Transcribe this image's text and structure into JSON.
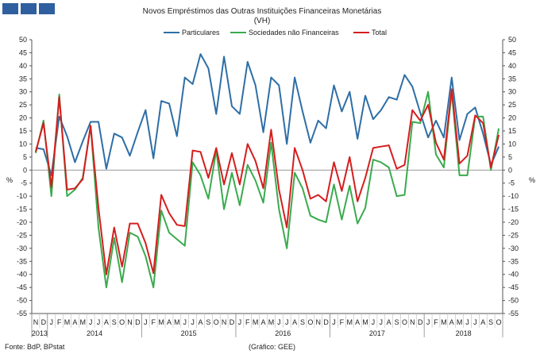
{
  "chart_data": {
    "type": "line",
    "title": "Novos Empréstimos das Outras Instituições Financeiras Monetárias",
    "subtitle": "(VH)",
    "ylabel_left": "%",
    "ylabel_right": "%",
    "ylim": [
      -55,
      50
    ],
    "ytick_step": 5,
    "source_note": "Fonte: BdP, BPstat",
    "graph_note": "(Gráfico: GEE)",
    "month_labels": [
      "N",
      "D",
      "J",
      "F",
      "M",
      "A",
      "M",
      "J",
      "J",
      "A",
      "S",
      "O",
      "N",
      "D",
      "J",
      "F",
      "M",
      "A",
      "M",
      "J",
      "J",
      "A",
      "S",
      "O",
      "N",
      "D",
      "J",
      "F",
      "M",
      "A",
      "M",
      "J",
      "J",
      "A",
      "S",
      "O",
      "N",
      "D",
      "J",
      "F",
      "M",
      "A",
      "M",
      "J",
      "J",
      "A",
      "S",
      "O",
      "N",
      "D",
      "J",
      "F",
      "M",
      "A",
      "M",
      "J",
      "J",
      "A",
      "S",
      "O"
    ],
    "year_groups": [
      {
        "label": "2013",
        "start": 0,
        "end": 1
      },
      {
        "label": "2014",
        "start": 2,
        "end": 13
      },
      {
        "label": "2015",
        "start": 14,
        "end": 25
      },
      {
        "label": "2016",
        "start": 26,
        "end": 37
      },
      {
        "label": "2017",
        "start": 38,
        "end": 49
      },
      {
        "label": "2018",
        "start": 50,
        "end": 59
      }
    ],
    "series": [
      {
        "name": "Particulares",
        "color": "#2e6ea6",
        "values": [
          8.5,
          8,
          -2,
          20.5,
          13,
          3,
          11,
          18.5,
          18.5,
          0.5,
          14,
          12.5,
          5.5,
          14.5,
          23,
          4.5,
          26.5,
          25.5,
          13,
          35.5,
          33,
          44.5,
          39,
          21.5,
          43.5,
          24.5,
          21.5,
          41.5,
          32.5,
          14.5,
          35.5,
          32.5,
          10,
          35.5,
          22.5,
          10.5,
          19,
          16,
          32.5,
          22.5,
          30,
          12,
          28.5,
          19.5,
          23,
          28,
          27,
          36.5,
          32,
          22,
          12.5,
          19,
          12.5,
          35.5,
          11.5,
          21.5,
          24,
          14,
          2,
          9
        ]
      },
      {
        "name": "Sociedades não Financeiras",
        "color": "#3aaa4e",
        "values": [
          6.5,
          19,
          -10,
          29,
          -10,
          -7.5,
          -3,
          17,
          -22,
          -45,
          -26,
          -43,
          -24,
          -25.5,
          -33,
          -45,
          -15.5,
          -24,
          -26.5,
          -29,
          3,
          -2,
          -11,
          7.5,
          -15,
          -1,
          -13.5,
          2,
          -4,
          -12.5,
          10.5,
          -15,
          -30,
          -1,
          -7,
          -17.5,
          -19,
          -20,
          -5.5,
          -19,
          -6,
          -20.5,
          -14.5,
          4,
          3,
          1,
          -10,
          -9.5,
          18.5,
          18,
          30,
          6,
          1,
          30,
          -2,
          -2,
          20.5,
          20.5,
          0,
          16
        ]
      },
      {
        "name": "Total",
        "color": "#d41e1e",
        "values": [
          7,
          18,
          -6.5,
          28,
          -7.5,
          -7,
          -3.5,
          17,
          -14.5,
          -40,
          -22,
          -37,
          -20.5,
          -20.5,
          -28,
          -39.5,
          -9.5,
          -16.5,
          -21,
          -21.5,
          7.5,
          7,
          -3,
          8.5,
          -5.5,
          6.5,
          -5.5,
          10,
          3.5,
          -7,
          15.5,
          -7.5,
          -22,
          8.5,
          0,
          -11,
          -9.5,
          -12,
          3,
          -8,
          5,
          -12,
          -3,
          8.5,
          9,
          9.5,
          0.5,
          2,
          23,
          19,
          25,
          10.5,
          4,
          31,
          2.5,
          5.5,
          21,
          18,
          1,
          13.5
        ]
      }
    ]
  }
}
